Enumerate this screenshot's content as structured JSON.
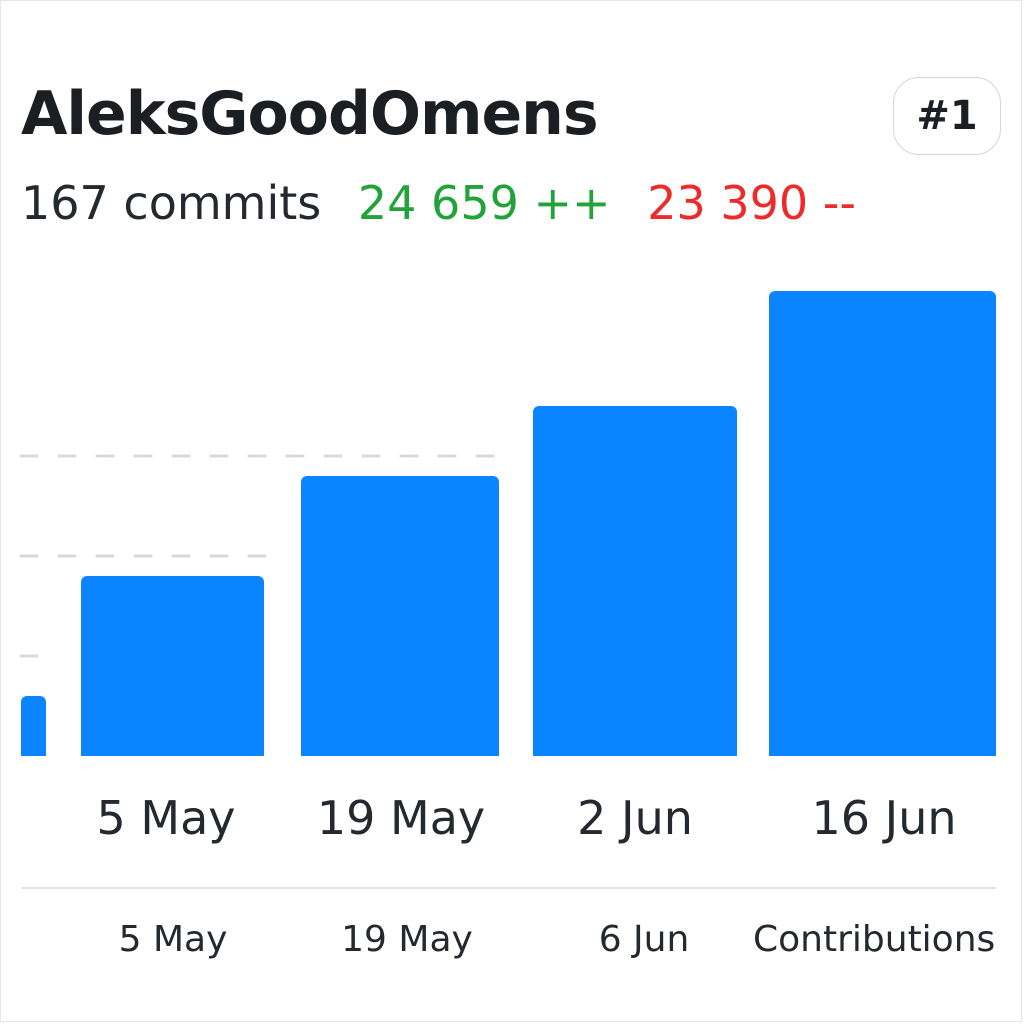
{
  "profile": {
    "username": "AleksGoodOmens",
    "rank": "#1",
    "commits": "167 commits",
    "additions": "24 659 ++",
    "deletions": "23 390 --"
  },
  "colors": {
    "bar": "#0a84ff",
    "additions": "#22a33a",
    "deletions": "#ee2a2a",
    "gridline": "#d5d8dc"
  },
  "chart_data": {
    "type": "bar",
    "categories": [
      "",
      "5 May",
      "19 May",
      "2 Jun",
      "16 Jun"
    ],
    "values": [
      6,
      18,
      28,
      35,
      46.5
    ],
    "ylim": [
      0,
      46.5
    ],
    "grid": true,
    "x_ticks_upper": [
      "5 May",
      "19 May",
      "2 Jun",
      "16 Jun"
    ],
    "x_ticks_lower": [
      "5 May",
      "19 May",
      "6 Jun"
    ],
    "caption": "Contributions"
  }
}
